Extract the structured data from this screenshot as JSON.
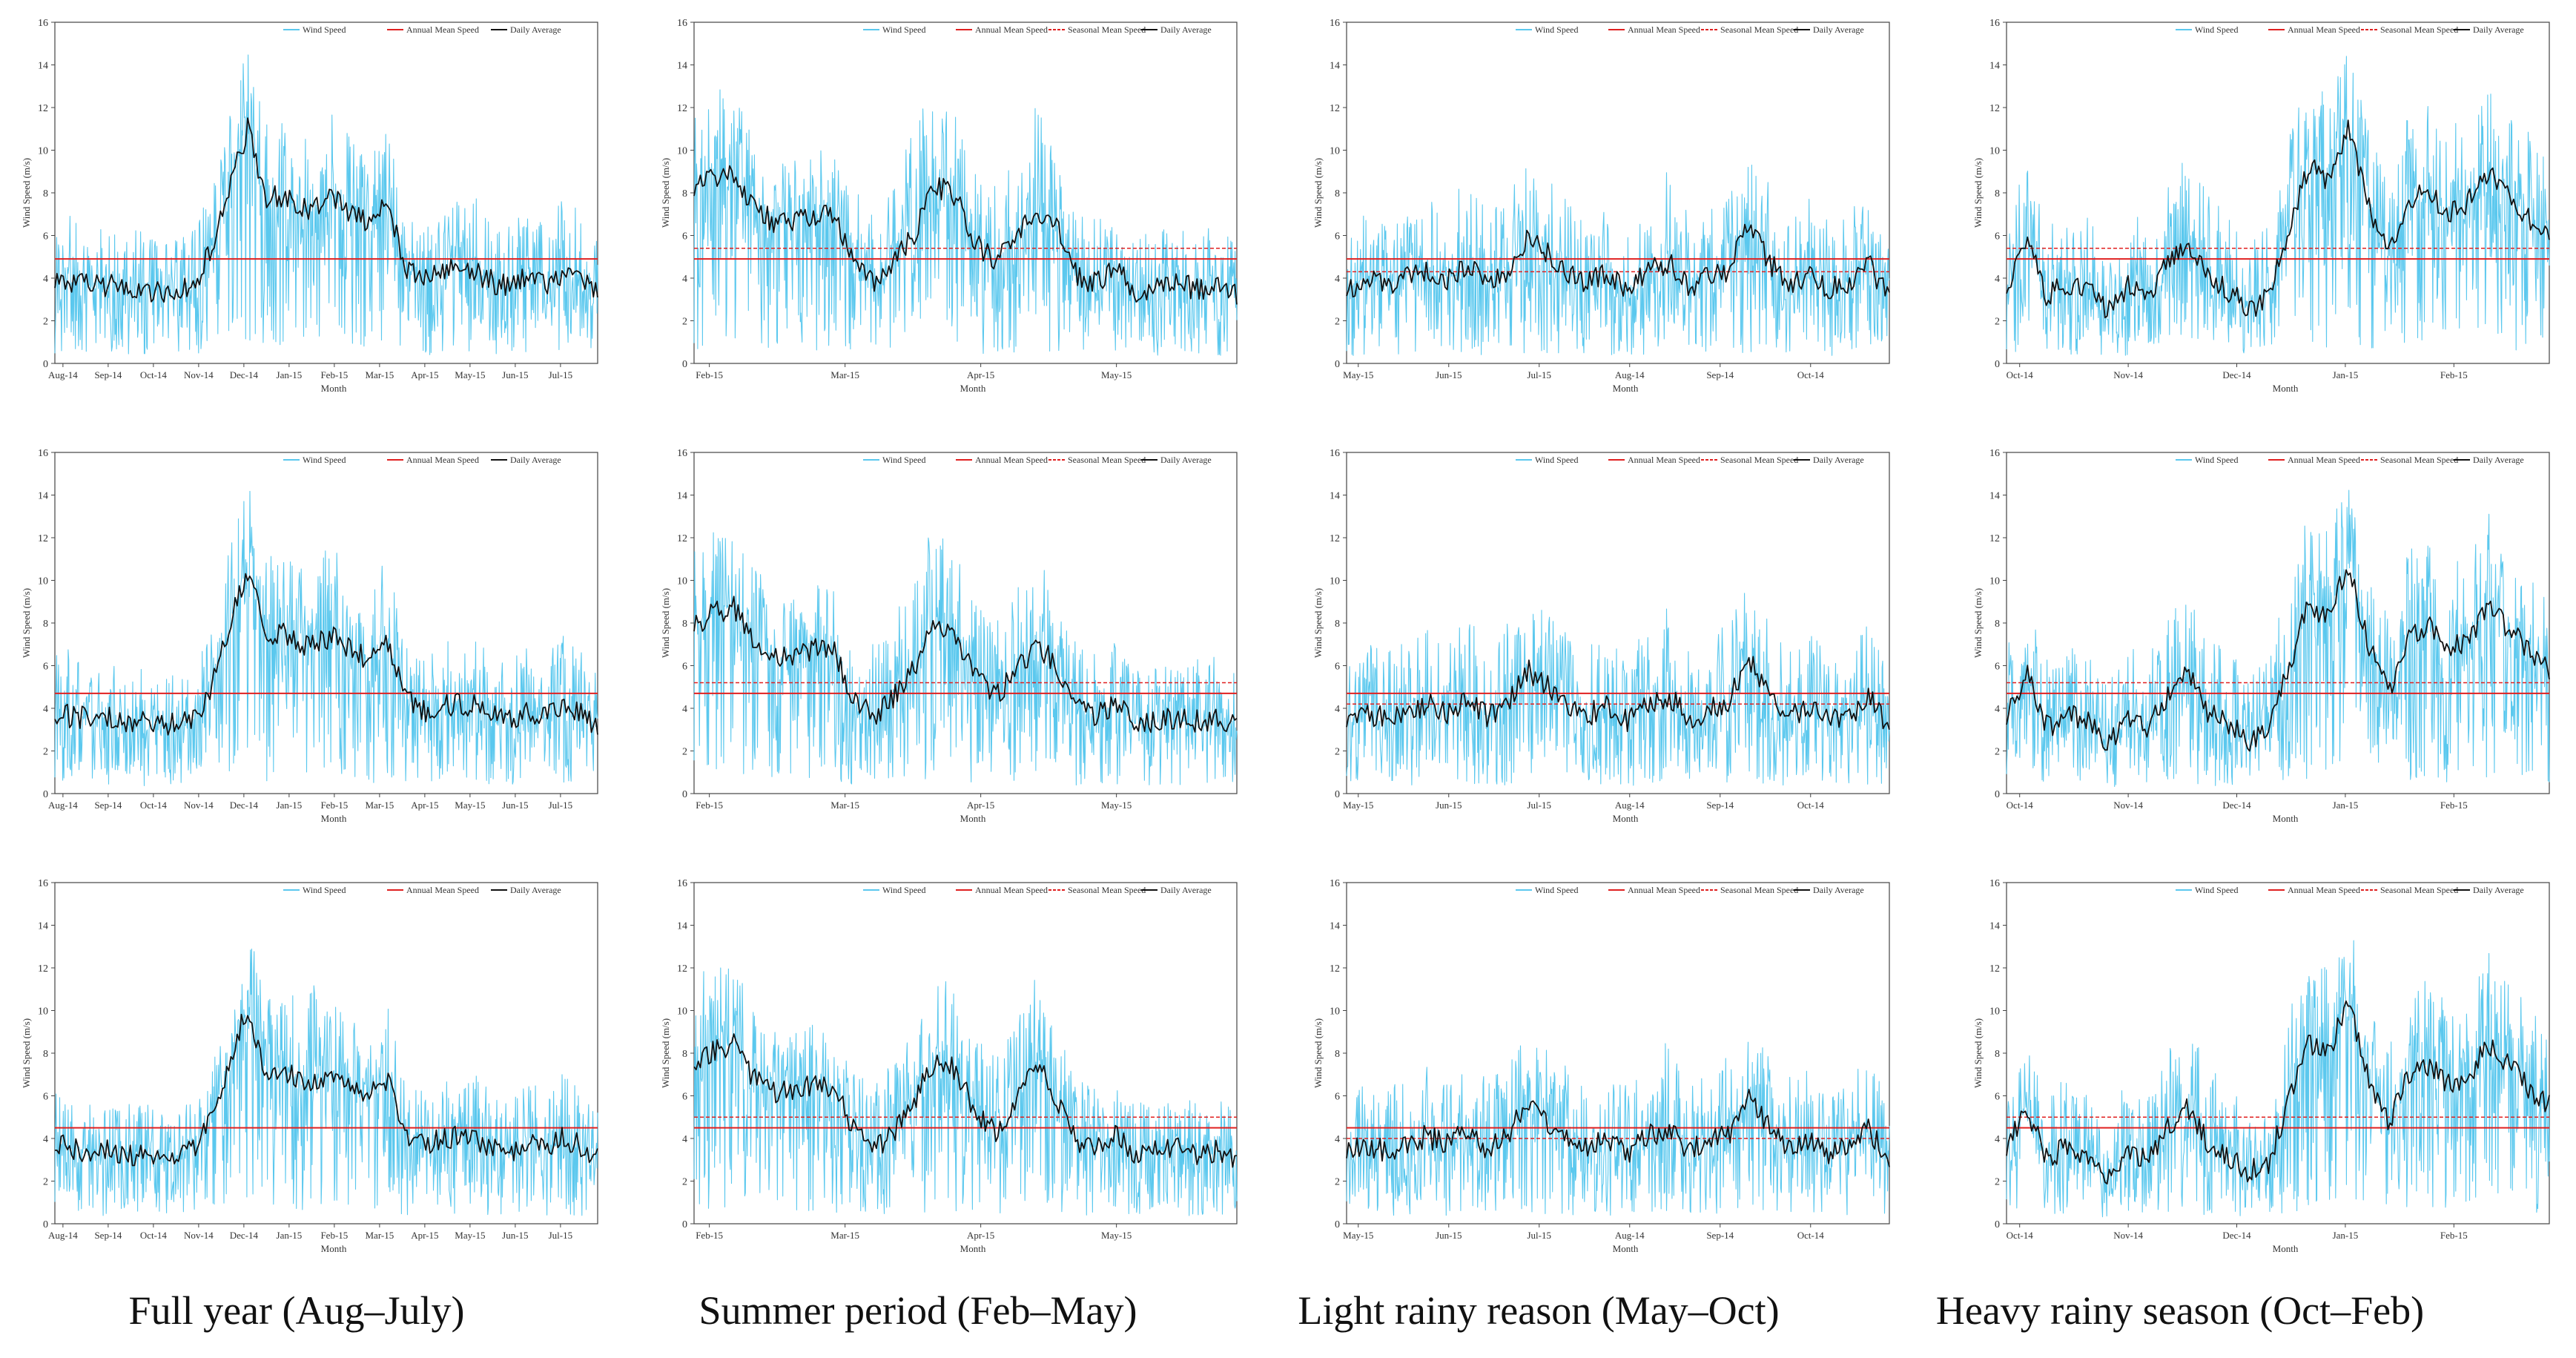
{
  "captions": [
    "Full year (Aug–July)",
    "Summer period (Feb–May)",
    "Light rainy reason (May–Oct)",
    "Heavy rainy season (Oct–Feb)"
  ],
  "colors": {
    "wind": "#5bc8ee",
    "annual": "#e02020",
    "seasonal": "#e02020",
    "daily": "#111111",
    "axis": "#444444"
  },
  "chart_data": [
    {
      "type": "line",
      "row": 1,
      "col": 1,
      "ylabel": "Wind Speed (m/s)",
      "xlabel": "Month",
      "yticks": [
        "0",
        "2",
        "4",
        "6",
        "8",
        "10",
        "12",
        "14",
        "16"
      ],
      "ylim": [
        0,
        16
      ],
      "xticks": [
        "Aug-14",
        "Sep-14",
        "Oct-14",
        "Nov-14",
        "Dec-14",
        "Jan-15",
        "Feb-15",
        "Mar-15",
        "Apr-15",
        "May-15",
        "Jun-15",
        "Jul-15"
      ],
      "legend": [
        "Wind Speed",
        "Annual Mean Speed",
        "Daily Average"
      ],
      "series": {
        "annual_mean": 4.9,
        "daily_profile": [
          3.9,
          3.8,
          3.6,
          3.7,
          3.4,
          3.5,
          3.3,
          3.4,
          3.6,
          5.5,
          8.3,
          11.0,
          7.8,
          7.9,
          7.2,
          7.4,
          7.8,
          7.0,
          6.6,
          7.4,
          4.6,
          4.0,
          4.2,
          4.5,
          4.3,
          3.8,
          3.6,
          4.1,
          3.6,
          4.3,
          3.9,
          3.3
        ],
        "gust_profile": [
          6.8,
          7.0,
          6.2,
          6.5,
          5.9,
          6.5,
          5.5,
          6.0,
          6.3,
          8.5,
          12.0,
          15.0,
          11.2,
          12.2,
          11.0,
          12.4,
          11.8,
          10.5,
          9.2,
          12.0,
          7.2,
          6.6,
          7.3,
          7.8,
          8.0,
          6.6,
          6.5,
          7.5,
          6.9,
          7.8,
          7.1,
          6.0
        ]
      }
    },
    {
      "type": "line",
      "row": 1,
      "col": 2,
      "ylabel": "Wind Speed (m/s)",
      "xlabel": "Month",
      "yticks": [
        "0",
        "2",
        "4",
        "6",
        "8",
        "10",
        "12",
        "14",
        "16"
      ],
      "ylim": [
        0,
        16
      ],
      "xticks": [
        "Feb-15",
        "Mar-15",
        "Apr-15",
        "May-15"
      ],
      "legend": [
        "Wind Speed",
        "Annual Mean Speed",
        "Seasonal Mean Speed",
        "Daily Average"
      ],
      "series": {
        "annual_mean": 4.9,
        "seasonal_mean": 5.4,
        "daily_profile": [
          8.2,
          8.8,
          9.0,
          7.3,
          6.6,
          6.6,
          7.0,
          6.8,
          4.5,
          3.7,
          4.8,
          6.2,
          8.4,
          7.8,
          5.6,
          4.7,
          6.0,
          7.0,
          6.4,
          4.2,
          3.7,
          4.5,
          3.3,
          3.6,
          3.7,
          3.5,
          3.6,
          3.3
        ],
        "gust_profile": [
          12.0,
          13.0,
          12.6,
          11.0,
          9.6,
          9.6,
          10.2,
          9.8,
          8.2,
          7.1,
          8.4,
          11.6,
          12.9,
          12.3,
          9.1,
          8.4,
          9.7,
          12.4,
          9.8,
          7.2,
          6.8,
          7.3,
          6.0,
          6.4,
          6.1,
          6.5,
          6.7,
          5.9
        ]
      }
    },
    {
      "type": "line",
      "row": 1,
      "col": 3,
      "ylabel": "Wind Speed (m/s)",
      "xlabel": "Month",
      "yticks": [
        "0",
        "2",
        "4",
        "6",
        "8",
        "10",
        "12",
        "14",
        "16"
      ],
      "ylim": [
        0,
        16
      ],
      "xticks": [
        "May-15",
        "Jun-15",
        "Jul-15",
        "Aug-14",
        "Sep-14",
        "Oct-14"
      ],
      "legend": [
        "Wind Speed",
        "Annual Mean Speed",
        "Seasonal Mean Speed",
        "Daily Average"
      ],
      "series": {
        "annual_mean": 4.9,
        "seasonal_mean": 4.3,
        "daily_profile": [
          3.5,
          3.9,
          3.6,
          4.0,
          4.3,
          3.9,
          4.6,
          3.7,
          4.4,
          6.0,
          5.2,
          4.3,
          3.8,
          4.2,
          3.5,
          4.3,
          4.8,
          3.6,
          4.0,
          4.4,
          6.6,
          4.8,
          3.7,
          4.1,
          3.5,
          3.8,
          4.6,
          3.1
        ],
        "gust_profile": [
          6.3,
          7.3,
          6.8,
          7.4,
          7.9,
          7.5,
          8.9,
          7.1,
          8.2,
          9.3,
          8.6,
          7.9,
          7.2,
          7.6,
          6.8,
          8.0,
          9.1,
          7.0,
          7.5,
          8.3,
          10.1,
          8.7,
          7.3,
          7.9,
          6.6,
          7.2,
          8.4,
          6.2
        ]
      }
    },
    {
      "type": "line",
      "row": 1,
      "col": 4,
      "ylabel": "Wind Speed (m/s)",
      "xlabel": "Month",
      "yticks": [
        "0",
        "2",
        "4",
        "6",
        "8",
        "10",
        "12",
        "14",
        "16"
      ],
      "ylim": [
        0,
        16
      ],
      "xticks": [
        "Oct-14",
        "Nov-14",
        "Dec-14",
        "Jan-15",
        "Feb-15"
      ],
      "legend": [
        "Wind Speed",
        "Annual Mean Speed",
        "Seasonal Mean Speed",
        "Daily Average"
      ],
      "series": {
        "annual_mean": 4.9,
        "seasonal_mean": 5.4,
        "daily_profile": [
          3.6,
          5.9,
          3.2,
          3.8,
          3.5,
          2.4,
          3.6,
          3.1,
          4.6,
          5.8,
          4.0,
          3.4,
          2.6,
          3.0,
          6.0,
          9.2,
          8.6,
          11.2,
          7.3,
          5.0,
          7.6,
          8.1,
          6.9,
          7.6,
          9.0,
          8.0,
          6.8,
          5.9
        ],
        "gust_profile": [
          7.0,
          9.6,
          6.5,
          7.4,
          6.9,
          5.6,
          7.2,
          6.6,
          8.5,
          9.8,
          7.9,
          7.0,
          5.8,
          6.4,
          10.4,
          13.5,
          12.8,
          15.2,
          11.0,
          8.6,
          11.8,
          12.4,
          11.2,
          11.4,
          13.6,
          12.2,
          11.0,
          9.5
        ]
      }
    },
    {
      "type": "line",
      "row": 2,
      "col": 1,
      "ylabel": "Wind Speed (m/s)",
      "xlabel": "Month",
      "yticks": [
        "0",
        "2",
        "4",
        "6",
        "8",
        "10",
        "12",
        "14",
        "16"
      ],
      "ylim": [
        0,
        16
      ],
      "xticks": [
        "Aug-14",
        "Sep-14",
        "Oct-14",
        "Nov-14",
        "Dec-14",
        "Jan-15",
        "Feb-15",
        "Mar-15",
        "Apr-15",
        "May-15",
        "Jun-15",
        "Jul-15"
      ],
      "legend": [
        "Wind Speed",
        "Annual Mean Speed",
        "Daily Average"
      ],
      "series": {
        "annual_mean": 4.7,
        "daily_profile": [
          3.8,
          3.6,
          3.5,
          3.6,
          3.3,
          3.4,
          3.2,
          3.3,
          3.5,
          5.2,
          8.0,
          10.5,
          7.6,
          7.5,
          7.0,
          7.1,
          7.5,
          6.7,
          6.3,
          7.1,
          4.4,
          3.9,
          4.0,
          4.3,
          4.1,
          3.6,
          3.5,
          3.9,
          3.5,
          4.1,
          3.8,
          3.2
        ],
        "gust_profile": [
          6.6,
          6.8,
          6.0,
          6.3,
          5.7,
          6.3,
          5.3,
          5.8,
          6.1,
          8.2,
          11.6,
          14.8,
          10.8,
          11.8,
          10.6,
          12.0,
          11.4,
          10.2,
          8.9,
          11.6,
          7.0,
          6.4,
          7.1,
          7.5,
          7.7,
          6.4,
          6.3,
          7.2,
          6.7,
          7.5,
          6.9,
          5.8
        ]
      }
    },
    {
      "type": "line",
      "row": 2,
      "col": 2,
      "ylabel": "Wind Speed (m/s)",
      "xlabel": "Month",
      "yticks": [
        "0",
        "2",
        "4",
        "6",
        "8",
        "10",
        "12",
        "14",
        "16"
      ],
      "ylim": [
        0,
        16
      ],
      "xticks": [
        "Feb-15",
        "Mar-15",
        "Apr-15",
        "May-15"
      ],
      "legend": [
        "Wind Speed",
        "Annual Mean Speed",
        "Seasonal Mean Speed",
        "Daily Average"
      ],
      "series": {
        "annual_mean": 4.7,
        "seasonal_mean": 5.2,
        "daily_profile": [
          7.9,
          8.5,
          8.7,
          7.0,
          6.4,
          6.4,
          6.8,
          6.6,
          4.3,
          3.6,
          4.6,
          6.0,
          8.1,
          7.5,
          5.4,
          4.5,
          5.8,
          6.8,
          6.2,
          4.0,
          3.6,
          4.3,
          3.2,
          3.5,
          3.6,
          3.4,
          3.5,
          3.2
        ],
        "gust_profile": [
          11.7,
          12.6,
          12.3,
          10.7,
          9.3,
          9.3,
          9.9,
          9.5,
          8.0,
          6.9,
          8.2,
          11.3,
          12.6,
          12.0,
          8.9,
          8.2,
          9.5,
          12.1,
          9.6,
          7.0,
          6.6,
          7.1,
          5.8,
          6.2,
          5.9,
          6.3,
          6.5,
          5.7
        ]
      }
    },
    {
      "type": "line",
      "row": 2,
      "col": 3,
      "ylabel": "Wind Speed (m/s)",
      "xlabel": "Month",
      "yticks": [
        "0",
        "2",
        "4",
        "6",
        "8",
        "10",
        "12",
        "14",
        "16"
      ],
      "ylim": [
        0,
        16
      ],
      "xticks": [
        "May-15",
        "Jun-15",
        "Jul-15",
        "Aug-14",
        "Sep-14",
        "Oct-14"
      ],
      "legend": [
        "Wind Speed",
        "Annual Mean Speed",
        "Seasonal Mean Speed",
        "Daily Average"
      ],
      "series": {
        "annual_mean": 4.7,
        "seasonal_mean": 4.2,
        "daily_profile": [
          3.4,
          3.8,
          3.5,
          3.9,
          4.2,
          3.8,
          4.5,
          3.6,
          4.3,
          5.8,
          5.0,
          4.2,
          3.7,
          4.1,
          3.4,
          4.2,
          4.6,
          3.5,
          3.9,
          4.3,
          6.4,
          4.6,
          3.6,
          4.0,
          3.4,
          3.7,
          4.5,
          3.0
        ],
        "gust_profile": [
          6.1,
          7.1,
          6.6,
          7.2,
          7.7,
          7.3,
          8.7,
          6.9,
          8.0,
          9.1,
          8.4,
          7.7,
          7.0,
          7.4,
          6.6,
          7.8,
          8.9,
          6.8,
          7.3,
          8.1,
          9.9,
          8.5,
          7.1,
          7.7,
          6.4,
          7.0,
          8.2,
          6.0
        ]
      }
    },
    {
      "type": "line",
      "row": 2,
      "col": 4,
      "ylabel": "Wind Speed (m/s)",
      "xlabel": "Month",
      "yticks": [
        "0",
        "2",
        "4",
        "6",
        "8",
        "10",
        "12",
        "14",
        "16"
      ],
      "ylim": [
        0,
        16
      ],
      "xticks": [
        "Oct-14",
        "Nov-14",
        "Dec-14",
        "Jan-15",
        "Feb-15"
      ],
      "legend": [
        "Wind Speed",
        "Annual Mean Speed",
        "Seasonal Mean Speed",
        "Daily Average"
      ],
      "series": {
        "annual_mean": 4.7,
        "seasonal_mean": 5.2,
        "daily_profile": [
          3.5,
          5.7,
          3.1,
          3.7,
          3.4,
          2.3,
          3.5,
          3.0,
          4.5,
          5.6,
          3.9,
          3.3,
          2.5,
          2.9,
          5.8,
          8.9,
          8.3,
          10.8,
          7.0,
          4.8,
          7.3,
          7.8,
          6.7,
          7.3,
          8.7,
          7.7,
          6.6,
          5.7
        ],
        "gust_profile": [
          6.8,
          9.3,
          6.3,
          7.2,
          6.7,
          5.4,
          7.0,
          6.4,
          8.3,
          9.5,
          7.7,
          6.8,
          5.6,
          6.2,
          10.1,
          13.1,
          12.4,
          14.8,
          10.7,
          8.4,
          11.5,
          12.1,
          10.9,
          11.1,
          13.2,
          11.9,
          10.7,
          9.2
        ]
      }
    },
    {
      "type": "line",
      "row": 3,
      "col": 1,
      "ylabel": "Wind Speed (m/s)",
      "xlabel": "Month",
      "yticks": [
        "0",
        "2",
        "4",
        "6",
        "8",
        "10",
        "12",
        "14",
        "16"
      ],
      "ylim": [
        0,
        16
      ],
      "xticks": [
        "Aug-14",
        "Sep-14",
        "Oct-14",
        "Nov-14",
        "Dec-14",
        "Jan-15",
        "Feb-15",
        "Mar-15",
        "Apr-15",
        "May-15",
        "Jun-15",
        "Jul-15"
      ],
      "legend": [
        "Wind Speed",
        "Annual Mean Speed",
        "Daily Average"
      ],
      "series": {
        "annual_mean": 4.5,
        "daily_profile": [
          3.7,
          3.5,
          3.4,
          3.5,
          3.2,
          3.3,
          3.1,
          3.2,
          3.4,
          5.0,
          7.7,
          10.2,
          7.3,
          7.2,
          6.7,
          6.8,
          7.2,
          6.4,
          6.0,
          6.8,
          4.2,
          3.8,
          3.9,
          4.1,
          4.0,
          3.5,
          3.4,
          3.8,
          3.4,
          4.0,
          3.7,
          3.1
        ],
        "gust_profile": [
          6.4,
          6.6,
          5.8,
          6.1,
          5.5,
          6.1,
          5.1,
          5.6,
          5.9,
          7.9,
          11.2,
          14.6,
          10.4,
          11.4,
          10.2,
          11.6,
          11.0,
          9.9,
          8.6,
          11.2,
          6.8,
          6.2,
          6.9,
          7.2,
          7.4,
          6.2,
          6.1,
          7.0,
          6.5,
          7.2,
          6.7,
          5.6
        ]
      }
    },
    {
      "type": "line",
      "row": 3,
      "col": 2,
      "ylabel": "Wind Speed (m/s)",
      "xlabel": "Month",
      "yticks": [
        "0",
        "2",
        "4",
        "6",
        "8",
        "10",
        "12",
        "14",
        "16"
      ],
      "ylim": [
        0,
        16
      ],
      "xticks": [
        "Feb-15",
        "Mar-15",
        "Apr-15",
        "May-15"
      ],
      "legend": [
        "Wind Speed",
        "Annual Mean Speed",
        "Seasonal Mean Speed",
        "Daily Average"
      ],
      "series": {
        "annual_mean": 4.5,
        "seasonal_mean": 5.0,
        "daily_profile": [
          7.6,
          8.2,
          8.4,
          6.8,
          6.2,
          6.2,
          6.6,
          6.4,
          4.2,
          3.5,
          4.4,
          5.8,
          7.8,
          7.2,
          5.2,
          4.3,
          5.6,
          7.8,
          6.0,
          3.9,
          3.5,
          4.2,
          3.1,
          3.4,
          3.5,
          3.3,
          3.4,
          3.1
        ],
        "gust_profile": [
          11.4,
          12.3,
          12.0,
          10.4,
          9.0,
          9.0,
          9.6,
          9.2,
          7.8,
          6.7,
          8.0,
          11.0,
          12.3,
          11.7,
          8.7,
          8.0,
          9.3,
          11.8,
          9.4,
          6.8,
          6.4,
          6.9,
          5.6,
          6.0,
          5.7,
          6.1,
          6.3,
          5.5
        ]
      }
    },
    {
      "type": "line",
      "row": 3,
      "col": 3,
      "ylabel": "Wind Speed (m/s)",
      "xlabel": "Month",
      "yticks": [
        "0",
        "2",
        "4",
        "6",
        "8",
        "10",
        "12",
        "14",
        "16"
      ],
      "ylim": [
        0,
        16
      ],
      "xticks": [
        "May-15",
        "Jun-15",
        "Jul-15",
        "Aug-14",
        "Sep-14",
        "Oct-14"
      ],
      "legend": [
        "Wind Speed",
        "Annual Mean Speed",
        "Seasonal Mean Speed",
        "Daily Average"
      ],
      "series": {
        "annual_mean": 4.5,
        "seasonal_mean": 4.0,
        "daily_profile": [
          3.3,
          3.7,
          3.4,
          3.8,
          4.1,
          3.7,
          4.4,
          3.5,
          4.2,
          5.6,
          4.8,
          4.1,
          3.6,
          4.0,
          3.3,
          4.1,
          4.5,
          3.4,
          3.8,
          4.2,
          6.0,
          4.5,
          3.5,
          3.9,
          3.3,
          3.6,
          4.4,
          2.9
        ],
        "gust_profile": [
          5.9,
          6.9,
          6.4,
          7.0,
          7.5,
          7.1,
          8.5,
          6.7,
          7.8,
          8.9,
          8.2,
          7.5,
          6.8,
          7.2,
          6.4,
          7.6,
          8.7,
          6.6,
          7.1,
          7.9,
          9.7,
          8.3,
          6.9,
          7.5,
          6.2,
          6.8,
          8.0,
          5.8
        ]
      }
    },
    {
      "type": "line",
      "row": 3,
      "col": 4,
      "ylabel": "Wind Speed (m/s)",
      "xlabel": "Month",
      "yticks": [
        "0",
        "2",
        "4",
        "6",
        "8",
        "10",
        "12",
        "14",
        "16"
      ],
      "ylim": [
        0,
        16
      ],
      "xticks": [
        "Oct-14",
        "Nov-14",
        "Dec-14",
        "Jan-15",
        "Feb-15"
      ],
      "legend": [
        "Wind Speed",
        "Annual Mean Speed",
        "Seasonal Mean Speed",
        "Daily Average"
      ],
      "series": {
        "annual_mean": 4.5,
        "seasonal_mean": 5.0,
        "daily_profile": [
          3.4,
          5.5,
          3.0,
          3.6,
          3.3,
          2.2,
          3.4,
          2.9,
          4.4,
          5.4,
          3.8,
          3.2,
          2.4,
          2.8,
          5.6,
          8.6,
          8.0,
          10.4,
          6.8,
          4.6,
          7.0,
          7.5,
          6.5,
          7.0,
          8.4,
          7.4,
          6.4,
          5.5
        ],
        "gust_profile": [
          6.6,
          9.0,
          6.1,
          7.0,
          6.5,
          5.2,
          6.8,
          6.2,
          8.1,
          9.2,
          7.5,
          6.6,
          5.4,
          6.0,
          9.8,
          12.8,
          12.1,
          14.5,
          10.4,
          8.2,
          11.2,
          11.8,
          10.6,
          10.8,
          12.9,
          11.6,
          10.4,
          9.0
        ]
      }
    }
  ]
}
